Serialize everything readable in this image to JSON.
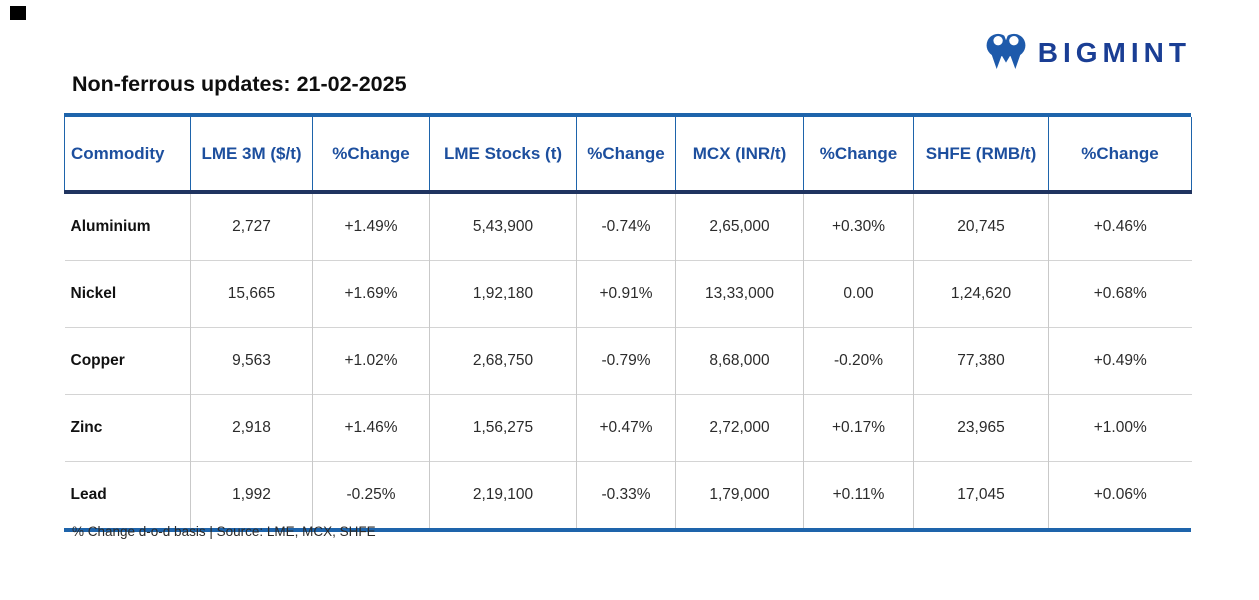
{
  "title": "Non-ferrous updates: 21-02-2025",
  "logo": {
    "text": "BIGMINT",
    "icon": "bigmint-twin-figures-m-icon"
  },
  "footer_note": "% Change d-o-d basis | Source: LME, MCX, SHFE",
  "colors": {
    "header_text": "#1d4f9e",
    "accent_line": "#1e64ab",
    "header_underline": "#203460",
    "logo_text": "#1a3e94",
    "logo_icon": "#1e5aab",
    "positive": "#2bb673",
    "negative": "#ee393f",
    "neutral": "#2b2b2b",
    "grid": "#c9c9c9"
  },
  "chart_data": {
    "type": "table",
    "title": "Non-ferrous updates: 21-02-2025",
    "columns": [
      "Commodity",
      "LME 3M ($/t)",
      "%Change",
      "LME Stocks (t)",
      "%Change",
      "MCX (INR/t)",
      "%Change",
      "SHFE (RMB/t)",
      "%Change"
    ],
    "change_column_indexes": [
      2,
      4,
      6,
      8
    ],
    "rows": [
      [
        "Aluminium",
        "2,727",
        "+1.49%",
        "5,43,900",
        "-0.74%",
        "2,65,000",
        "+0.30%",
        "20,745",
        "+0.46%"
      ],
      [
        "Nickel",
        "15,665",
        "+1.69%",
        "1,92,180",
        "+0.91%",
        "13,33,000",
        "0.00",
        "1,24,620",
        "+0.68%"
      ],
      [
        "Copper",
        "9,563",
        "+1.02%",
        "2,68,750",
        "-0.79%",
        "8,68,000",
        "-0.20%",
        "77,380",
        "+0.49%"
      ],
      [
        "Zinc",
        "2,918",
        "+1.46%",
        "1,56,275",
        "+0.47%",
        "2,72,000",
        "+0.17%",
        "23,965",
        "+1.00%"
      ],
      [
        "Lead",
        "1,992",
        "-0.25%",
        "2,19,100",
        "-0.33%",
        "1,79,000",
        "+0.11%",
        "17,045",
        "+0.06%"
      ]
    ],
    "source_note": "% Change d-o-d basis | Source: LME, MCX, SHFE"
  }
}
